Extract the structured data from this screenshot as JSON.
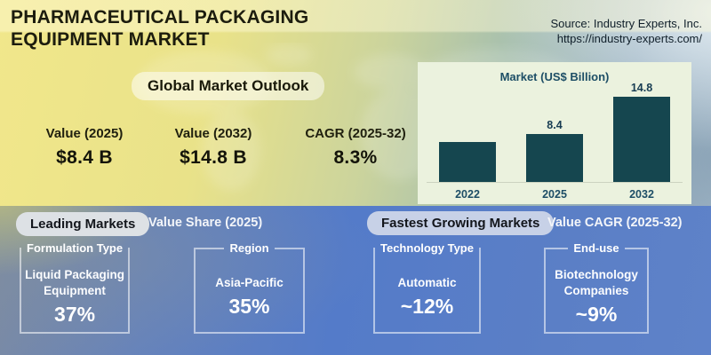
{
  "header": {
    "title_line1": "PHARMACEUTICAL PACKAGING",
    "title_line2": "EQUIPMENT MARKET",
    "source_line1": "Source: Industry Experts, Inc.",
    "source_line2": "https://industry-experts.com/"
  },
  "outlook": {
    "banner": "Global Market Outlook",
    "stats": [
      {
        "label": "Value (2025)",
        "value": "$8.4 B"
      },
      {
        "label": "Value (2032)",
        "value": "$14.8 B"
      },
      {
        "label": "CAGR (2025-32)",
        "value": "8.3%"
      }
    ]
  },
  "chart_data": {
    "type": "bar",
    "title": "Market (US$ Billion)",
    "categories": [
      "2022",
      "2025",
      "2032"
    ],
    "values": [
      7.0,
      8.4,
      14.8
    ],
    "data_labels": [
      "",
      "8.4",
      "14.8"
    ],
    "ylim": [
      0,
      14.8
    ],
    "grid": false,
    "legend_position": "none",
    "bar_color": "#15464f",
    "panel_color": "#ebf2de",
    "label_color": "#173c52"
  },
  "segments": {
    "leading": {
      "pill": "Leading Markets",
      "caption": "Value Share (2025)",
      "cards": [
        {
          "category": "Formulation Type",
          "name": "Liquid Packaging Equipment",
          "value": "37%"
        },
        {
          "category": "Region",
          "name": "Asia-Pacific",
          "value": "35%"
        }
      ]
    },
    "fastest": {
      "pill": "Fastest Growing Markets",
      "caption": "Value CAGR (2025-32)",
      "cards": [
        {
          "category": "Technology Type",
          "name": "Automatic",
          "value": "~12%"
        },
        {
          "category": "End-use",
          "name": "Biotechnology Companies",
          "value": "~9%"
        }
      ]
    }
  },
  "colors": {
    "accent_yellow": "#f1e78b",
    "accent_blue": "#5b7fc6",
    "bar_teal": "#15464f",
    "chart_text": "#1d4e66"
  }
}
